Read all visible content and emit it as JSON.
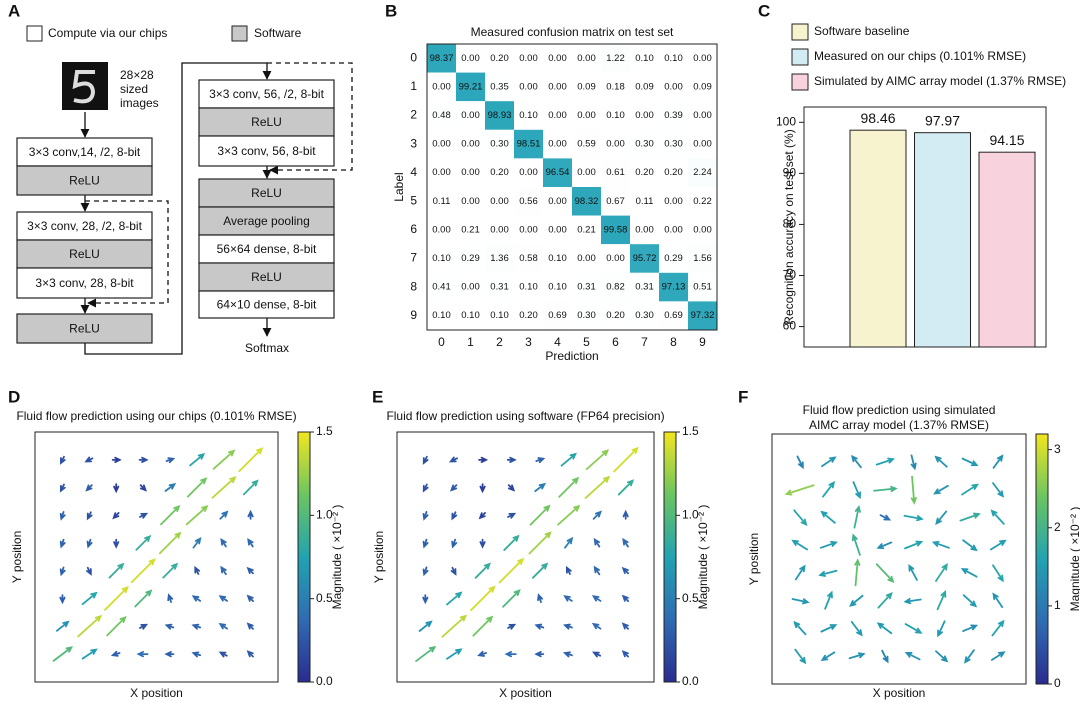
{
  "chart_data": [
    {
      "type": "diagram",
      "label": "A",
      "legend": [
        {
          "text": "Compute via our chips",
          "color": "#ffffff"
        },
        {
          "text": "Software",
          "color": "#c8c8c8"
        }
      ],
      "input_label": [
        "28×28",
        "sized",
        "images"
      ],
      "blocks": [
        {
          "text": "3×3 conv,14, /2, 8-bit",
          "group": 0
        },
        {
          "text": "ReLU",
          "group": 1
        },
        {
          "text": "3×3 conv, 28, /2, 8-bit",
          "group": 0
        },
        {
          "text": "ReLU",
          "group": 1
        },
        {
          "text": "3×3 conv, 28, 8-bit",
          "group": 0
        },
        {
          "text": "ReLU",
          "group": 1
        },
        {
          "text": "3×3 conv, 56, /2, 8-bit",
          "group": 0
        },
        {
          "text": "ReLU",
          "group": 1
        },
        {
          "text": "3×3 conv, 56, 8-bit",
          "group": 0
        },
        {
          "text": "ReLU",
          "group": 1
        },
        {
          "text": "Average pooling",
          "group": 1
        },
        {
          "text": "56×64 dense, 8-bit",
          "group": 0
        },
        {
          "text": "ReLU",
          "group": 1
        },
        {
          "text": "64×10 dense, 8-bit",
          "group": 0
        }
      ],
      "output": "Softmax"
    },
    {
      "type": "heatmap",
      "label": "B",
      "title": "Measured confusion matrix on test set",
      "xlabel": "Prediction",
      "ylabel": "Label",
      "color": "#2ba6ba",
      "categories": [
        "0",
        "1",
        "2",
        "3",
        "4",
        "5",
        "6",
        "7",
        "8",
        "9"
      ],
      "values": [
        [
          98.37,
          0,
          0.2,
          0,
          0,
          0,
          1.22,
          0.1,
          0.1,
          0
        ],
        [
          0,
          99.21,
          0.35,
          0,
          0,
          0.09,
          0.18,
          0.09,
          0,
          0.09
        ],
        [
          0.48,
          0,
          98.93,
          0.1,
          0,
          0,
          0.1,
          0,
          0.39,
          0
        ],
        [
          0,
          0,
          0.3,
          98.51,
          0,
          0.59,
          0,
          0.3,
          0.3,
          0
        ],
        [
          0,
          0,
          0.2,
          0,
          96.54,
          0,
          0.61,
          0.2,
          0.2,
          2.24
        ],
        [
          0.11,
          0,
          0,
          0.56,
          0,
          98.32,
          0.67,
          0.11,
          0,
          0.22
        ],
        [
          0,
          0.21,
          0,
          0,
          0,
          0.21,
          99.58,
          0,
          0,
          0
        ],
        [
          0.1,
          0.29,
          1.36,
          0.58,
          0.1,
          0,
          0,
          95.72,
          0.29,
          1.56
        ],
        [
          0.41,
          0,
          0.31,
          0.1,
          0.1,
          0.31,
          0.82,
          0.31,
          97.13,
          0.51
        ],
        [
          0.1,
          0.1,
          0.1,
          0.2,
          0.69,
          0.3,
          0.2,
          0.3,
          0.69,
          97.32
        ]
      ],
      "value_labels": [
        [
          "98.37",
          "0.00",
          "0.20",
          "0.00",
          "0.00",
          "0.00",
          "1.22",
          "0.10",
          "0.10",
          "0.00"
        ],
        [
          "0.00",
          "99.21",
          "0.35",
          "0.00",
          "0.00",
          "0.09",
          "0.18",
          "0.09",
          "0.00",
          "0.09"
        ],
        [
          "0.48",
          "0.00",
          "98.93",
          "0.10",
          "0.00",
          "0.00",
          "0.10",
          "0.00",
          "0.39",
          "0.00"
        ],
        [
          "0.00",
          "0.00",
          "0.30",
          "98.51",
          "0.00",
          "0.59",
          "0.00",
          "0.30",
          "0.30",
          "0.00"
        ],
        [
          "0.00",
          "0.00",
          "0.20",
          "0.00",
          "96.54",
          "0.00",
          "0.61",
          "0.20",
          "0.20",
          "2.24"
        ],
        [
          "0.11",
          "0.00",
          "0.00",
          "0.56",
          "0.00",
          "98.32",
          "0.67",
          "0.11",
          "0.00",
          "0.22"
        ],
        [
          "0.00",
          "0.21",
          "0.00",
          "0.00",
          "0.00",
          "0.21",
          "99.58",
          "0.00",
          "0.00",
          "0.00"
        ],
        [
          "0.10",
          "0.29",
          "1.36",
          "0.58",
          "0.10",
          "0.00",
          "0.00",
          "95.72",
          "0.29",
          "1.56"
        ],
        [
          "0.41",
          "0.00",
          "0.31",
          "0.10",
          "0.10",
          "0.31",
          "0.82",
          "0.31",
          "97.13",
          "0.51"
        ],
        [
          "0.10",
          "0.10",
          "0.10",
          "0.20",
          "0.69",
          "0.30",
          "0.20",
          "0.30",
          "0.69",
          "97.32"
        ]
      ]
    },
    {
      "type": "bar",
      "label": "C",
      "ylabel": "Recognition accuracy on test set (%)",
      "categories": [
        "Software baseline",
        "Measured on our chips (0.101% RMSE)",
        "Simulated by AIMC array model (1.37% RMSE)"
      ],
      "values": [
        98.46,
        97.97,
        94.15
      ],
      "colors": [
        "#f7f3cf",
        "#d3ebf3",
        "#f8d3de"
      ],
      "ylim": [
        56,
        103
      ],
      "yticks": [
        60,
        70,
        80,
        90,
        100
      ]
    },
    {
      "type": "quiver",
      "label": "D",
      "title": "Fluid flow prediction using our chips (0.101% RMSE)",
      "xlabel": "X position",
      "ylabel": "Y position",
      "colorbar": {
        "label": "Magnitude ( ×10⁻² )",
        "lim": [
          0,
          1.5
        ],
        "ticks": [
          {
            "value": 0,
            "label": "0.0"
          },
          {
            "value": 0.5,
            "label": "0.5"
          },
          {
            "value": 1,
            "label": "1.0"
          },
          {
            "value": 1.5,
            "label": "1.5"
          }
        ]
      },
      "colormap": [
        "#2a2c8f",
        "#2f6cb3",
        "#21a3b1",
        "#6cc561",
        "#f2e61e"
      ],
      "u": [
        [
          -0.1,
          -0.2,
          0.1,
          0.2,
          0.3,
          0.6,
          0.9,
          1.0
        ],
        [
          -0.1,
          -0.2,
          0,
          0.1,
          0.4,
          0.8,
          1.0,
          0.6
        ],
        [
          -0.1,
          -0.1,
          -0.1,
          0.2,
          0.8,
          0.9,
          0.3,
          0
        ],
        [
          -0.1,
          -0.1,
          0,
          0.6,
          0.9,
          0.3,
          -0.2,
          -0.2
        ],
        [
          -0.1,
          0.1,
          0.6,
          1.0,
          0.6,
          -0.1,
          -0.2,
          -0.2
        ],
        [
          0,
          0.6,
          1.0,
          0.7,
          -0.1,
          -0.3,
          -0.3,
          -0.2
        ],
        [
          0.5,
          1.0,
          0.8,
          0.2,
          -0.3,
          -0.3,
          -0.3,
          -0.2
        ],
        [
          0.8,
          0.6,
          -0.3,
          -0.4,
          -0.3,
          -0.3,
          -0.2,
          -0.2
        ]
      ],
      "v": [
        [
          -0.2,
          -0.1,
          0,
          0,
          0.1,
          0.5,
          0.8,
          1.0
        ],
        [
          -0.2,
          -0.2,
          -0.1,
          -0.1,
          0.3,
          0.8,
          0.9,
          0.6
        ],
        [
          -0.3,
          -0.2,
          -0.1,
          0.1,
          0.8,
          0.8,
          0.3,
          0.3
        ],
        [
          -0.3,
          -0.3,
          -0.2,
          0.6,
          0.9,
          0.4,
          0.3,
          0.3
        ],
        [
          -0.3,
          -0.2,
          0.6,
          1.0,
          0.6,
          0.2,
          0.3,
          0.2
        ],
        [
          -0.3,
          0.5,
          1.0,
          0.7,
          0.3,
          0.2,
          0.2,
          0.2
        ],
        [
          0.4,
          0.9,
          0.8,
          0.1,
          0.1,
          0.1,
          0.2,
          0.2
        ],
        [
          0.6,
          0.4,
          -0.1,
          0,
          0,
          0.1,
          0.1,
          0.2
        ]
      ]
    },
    {
      "type": "quiver",
      "label": "E",
      "title": "Fluid flow prediction using software (FP64 precision)",
      "xlabel": "X position",
      "ylabel": "Y position",
      "colorbar": {
        "label": "Magnitude ( ×10⁻² )",
        "lim": [
          0,
          1.5
        ],
        "ticks": [
          {
            "value": 0,
            "label": "0.0"
          },
          {
            "value": 0.5,
            "label": "0.5"
          },
          {
            "value": 1,
            "label": "1.0"
          },
          {
            "value": 1.5,
            "label": "1.5"
          }
        ]
      },
      "colormap": [
        "#2a2c8f",
        "#2f6cb3",
        "#21a3b1",
        "#6cc561",
        "#f2e61e"
      ],
      "u": [
        [
          -0.1,
          -0.2,
          0.1,
          0.2,
          0.3,
          0.6,
          0.9,
          1.0
        ],
        [
          -0.1,
          -0.2,
          0,
          0.1,
          0.4,
          0.8,
          1.0,
          0.6
        ],
        [
          -0.1,
          -0.1,
          -0.1,
          0.2,
          0.8,
          0.9,
          0.3,
          0
        ],
        [
          -0.1,
          -0.1,
          0,
          0.6,
          0.9,
          0.3,
          -0.2,
          -0.2
        ],
        [
          -0.1,
          0.1,
          0.6,
          1.0,
          0.6,
          -0.1,
          -0.2,
          -0.2
        ],
        [
          0,
          0.6,
          1.0,
          0.7,
          -0.1,
          -0.3,
          -0.3,
          -0.2
        ],
        [
          0.5,
          1.0,
          0.8,
          0.2,
          -0.3,
          -0.3,
          -0.3,
          -0.2
        ],
        [
          0.8,
          0.6,
          -0.3,
          -0.4,
          -0.3,
          -0.3,
          -0.2,
          -0.2
        ]
      ],
      "v": [
        [
          -0.2,
          -0.1,
          0,
          0,
          0.1,
          0.5,
          0.8,
          1.0
        ],
        [
          -0.2,
          -0.2,
          -0.1,
          -0.1,
          0.3,
          0.8,
          0.9,
          0.6
        ],
        [
          -0.3,
          -0.2,
          -0.1,
          0.1,
          0.8,
          0.8,
          0.3,
          0.3
        ],
        [
          -0.3,
          -0.3,
          -0.2,
          0.6,
          0.9,
          0.4,
          0.3,
          0.3
        ],
        [
          -0.3,
          -0.2,
          0.6,
          1.0,
          0.6,
          0.2,
          0.3,
          0.2
        ],
        [
          -0.3,
          0.5,
          1.0,
          0.7,
          0.3,
          0.2,
          0.2,
          0.2
        ],
        [
          0.4,
          0.9,
          0.8,
          0.1,
          0.1,
          0.1,
          0.2,
          0.2
        ],
        [
          0.6,
          0.4,
          -0.1,
          0,
          0,
          0.1,
          0.1,
          0.2
        ]
      ]
    },
    {
      "type": "quiver",
      "label": "F",
      "title": [
        "Fluid flow prediction using simulated",
        "AIMC array model (1.37% RMSE)"
      ],
      "xlabel": "X position",
      "ylabel": "Y position",
      "colorbar": {
        "label": "Magnitude ( ×10⁻² )",
        "lim": [
          0,
          3.2
        ],
        "ticks": [
          0,
          1,
          2,
          3
        ]
      },
      "colormap": [
        "#2a2c8f",
        "#2f6cb3",
        "#21a3b1",
        "#6cc561",
        "#f2e61e"
      ],
      "u": [
        [
          0.5,
          1.2,
          -0.8,
          1.5,
          0.3,
          -1.0,
          1.3,
          0.8
        ],
        [
          -2.5,
          1.0,
          0.6,
          2.0,
          0.2,
          -1.2,
          1.4,
          0.9
        ],
        [
          1.1,
          -1.2,
          0.4,
          0.8,
          1.6,
          -0.9,
          1.7,
          -1.1
        ],
        [
          -1.3,
          1.4,
          -0.6,
          -1.2,
          1.5,
          -1.4,
          1.2,
          1.3
        ],
        [
          0.8,
          -1.5,
          0.2,
          1.5,
          -0.7,
          1.0,
          -1.3,
          0.9
        ],
        [
          1.4,
          0.6,
          -1.1,
          1.2,
          -1.4,
          0.7,
          1.1,
          -0.8
        ],
        [
          -1.0,
          1.3,
          0.9,
          -1.2,
          1.4,
          -0.6,
          1.2,
          1.0
        ],
        [
          0.9,
          -1.1,
          1.3,
          0.5,
          -1.2,
          1.0,
          -0.8,
          1.1
        ]
      ],
      "v": [
        [
          -1.0,
          0.8,
          1.0,
          0.5,
          -1.2,
          0.9,
          -0.6,
          1.1
        ],
        [
          -0.8,
          1.3,
          -1.4,
          0.2,
          -2.4,
          -0.7,
          0.9,
          -1.2
        ],
        [
          -1.3,
          1.0,
          1.9,
          -0.4,
          -0.3,
          -1.1,
          0.6,
          1.2
        ],
        [
          0.8,
          0.5,
          1.8,
          -0.5,
          0.6,
          0.5,
          -0.9,
          0.8
        ],
        [
          1.2,
          -0.4,
          2.3,
          -1.6,
          1.3,
          1.5,
          0.7,
          -1.4
        ],
        [
          -0.3,
          1.5,
          -0.9,
          1.3,
          -0.2,
          1.6,
          -1.0,
          1.2
        ],
        [
          1.1,
          0.6,
          -1.2,
          0.9,
          -0.8,
          -1.3,
          0.5,
          1.3
        ],
        [
          -1.2,
          -0.7,
          0.4,
          -1.0,
          0.6,
          -0.9,
          -1.1,
          0.7
        ]
      ]
    }
  ]
}
